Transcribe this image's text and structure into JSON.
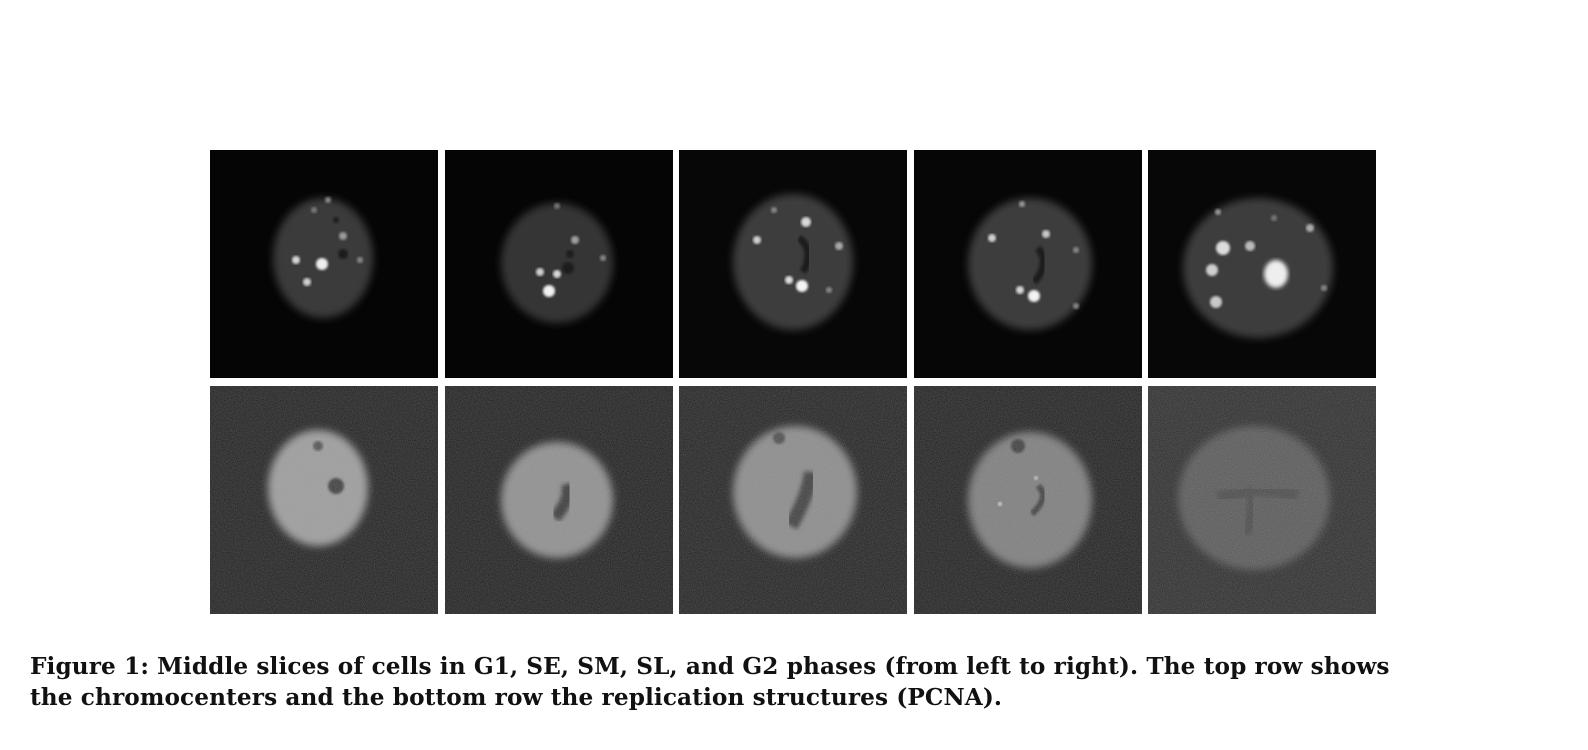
{
  "figure": {
    "caption_line1": "Figure 1: Middle slices of cells in G1, SE, SM, SL, and G2 phases (from left to right). The top row shows",
    "caption_line2": "the chromocenters and the bottom row the replication structures (PCNA).",
    "columns": [
      "G1",
      "SE",
      "SM",
      "SL",
      "G2"
    ],
    "rows": [
      "chromocenters",
      "replication structures (PCNA)"
    ]
  }
}
